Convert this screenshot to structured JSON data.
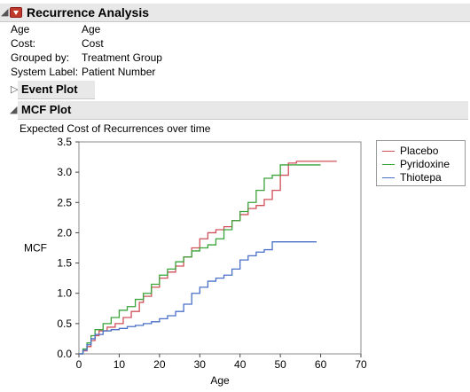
{
  "report": {
    "title": "Recurrence Analysis",
    "fields": [
      {
        "label": "Age",
        "value": "Age"
      },
      {
        "label": "Cost:",
        "value": "Cost"
      },
      {
        "label": "Grouped by:",
        "value": "Treatment Group"
      },
      {
        "label": "System Label:",
        "value": "Patient Number"
      }
    ],
    "event_plot_title": "Event Plot",
    "mcf_plot_title": "MCF Plot",
    "chart_caption": "Expected Cost of Recurrences over time"
  },
  "colors": {
    "Placebo": "#d0505a",
    "Pyridoxine": "#3aa33a",
    "Thiotepa": "#4a70c8"
  },
  "chart_data": {
    "type": "line",
    "title": "Expected Cost of Recurrences over time",
    "xlabel": "Age",
    "ylabel": "MCF",
    "xlim": [
      0,
      70
    ],
    "ylim": [
      0,
      3.5
    ],
    "xticks": [
      0,
      10,
      20,
      30,
      40,
      50,
      60,
      70
    ],
    "yticks": [
      0.0,
      0.5,
      1.0,
      1.5,
      2.0,
      2.5,
      3.0,
      3.5
    ],
    "legend": "right",
    "series": [
      {
        "name": "Placebo",
        "x": [
          0,
          1,
          2,
          3,
          4,
          5,
          7,
          9,
          11,
          13,
          15,
          16,
          18,
          20,
          22,
          24,
          26,
          28,
          30,
          32,
          34,
          36,
          38,
          40,
          42,
          44,
          46,
          48,
          50,
          52,
          54,
          64
        ],
        "y": [
          0,
          0.05,
          0.12,
          0.22,
          0.3,
          0.38,
          0.44,
          0.5,
          0.6,
          0.7,
          0.85,
          0.95,
          1.1,
          1.25,
          1.35,
          1.45,
          1.6,
          1.75,
          1.9,
          2.0,
          2.05,
          2.1,
          2.2,
          2.3,
          2.4,
          2.45,
          2.55,
          2.7,
          2.95,
          3.15,
          3.18,
          3.18
        ]
      },
      {
        "name": "Pyridoxine",
        "x": [
          0,
          1,
          2,
          3,
          4,
          6,
          8,
          10,
          12,
          14,
          16,
          18,
          20,
          22,
          24,
          26,
          28,
          30,
          32,
          34,
          36,
          38,
          40,
          42,
          44,
          46,
          48,
          50,
          52,
          54,
          60
        ],
        "y": [
          0,
          0.08,
          0.18,
          0.3,
          0.4,
          0.5,
          0.6,
          0.72,
          0.78,
          0.9,
          1.0,
          1.15,
          1.3,
          1.4,
          1.52,
          1.6,
          1.7,
          1.75,
          1.8,
          1.9,
          2.05,
          2.2,
          2.35,
          2.5,
          2.7,
          2.9,
          2.95,
          3.12,
          3.12,
          3.12,
          3.12
        ]
      },
      {
        "name": "Thiotepa",
        "x": [
          0,
          1,
          2,
          3,
          4,
          6,
          8,
          10,
          12,
          14,
          16,
          18,
          20,
          22,
          24,
          26,
          28,
          30,
          32,
          34,
          36,
          38,
          40,
          42,
          44,
          46,
          48,
          59
        ],
        "y": [
          0,
          0.06,
          0.15,
          0.25,
          0.32,
          0.38,
          0.4,
          0.42,
          0.45,
          0.47,
          0.5,
          0.53,
          0.58,
          0.63,
          0.7,
          0.82,
          1.0,
          1.1,
          1.2,
          1.25,
          1.3,
          1.4,
          1.55,
          1.62,
          1.68,
          1.72,
          1.85,
          1.85
        ]
      }
    ]
  }
}
